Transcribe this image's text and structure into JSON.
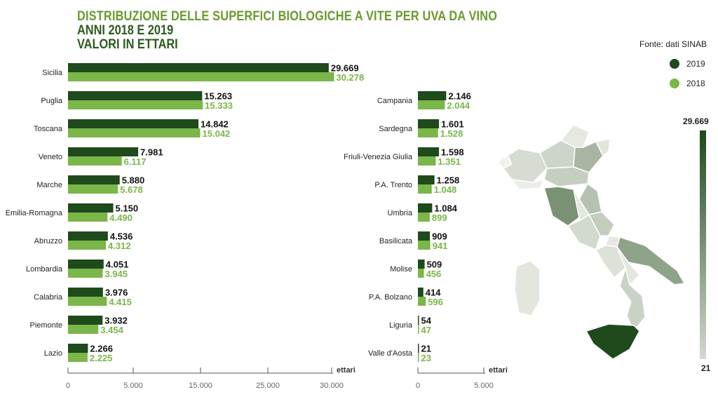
{
  "header": {
    "title": "DISTRIBUZIONE DELLE SUPERFICI BIOLOGICHE A VITE PER UVA DA VINO",
    "subtitle_1": "ANNI 2018 E 2019",
    "subtitle_2": "VALORI IN ETTARI"
  },
  "source": "Fonte: dati SINAB",
  "legend": [
    {
      "label": "2019",
      "color": "#1e4a1c"
    },
    {
      "label": "2018",
      "color": "#7ab648"
    }
  ],
  "colors": {
    "y2019": "#1e4a1c",
    "y2018": "#7ab648",
    "label2019": "#111111",
    "label2018": "#7ab648"
  },
  "map_scale": {
    "max_label": "29.669",
    "min_label": "21"
  },
  "chart_data": [
    {
      "type": "bar",
      "orientation": "horizontal",
      "categories": [
        "Sicilia",
        "Puglia",
        "Toscana",
        "Veneto",
        "Marche",
        "Emilia-Romagna",
        "Abruzzo",
        "Lombardia",
        "Calabria",
        "Piemonte",
        "Lazio"
      ],
      "series": [
        {
          "name": "2019",
          "values": [
            29669,
            15263,
            14842,
            7981,
            5880,
            5150,
            4536,
            4051,
            3976,
            3932,
            2266
          ],
          "labels": [
            "29.669",
            "15.263",
            "14.842",
            "7.981",
            "5.880",
            "5.150",
            "4.536",
            "4.051",
            "3.976",
            "3.932",
            "2.266"
          ]
        },
        {
          "name": "2018",
          "values": [
            30278,
            15333,
            15042,
            6117,
            5678,
            4490,
            4312,
            3945,
            4415,
            3454,
            2225
          ],
          "labels": [
            "30.278",
            "15.333",
            "15.042",
            "6.117",
            "5.678",
            "4.490",
            "4.312",
            "3.945",
            "4.415",
            "3.454",
            "2.225"
          ]
        }
      ],
      "xlabel": "ettari",
      "ticks": [
        0,
        5000,
        15000,
        25000,
        30000
      ],
      "tick_labels": [
        "0",
        "5.000",
        "15.000",
        "25.000",
        "30.000"
      ],
      "xlim": [
        0,
        30000
      ]
    },
    {
      "type": "bar",
      "orientation": "horizontal",
      "categories": [
        "Campania",
        "Sardegna",
        "Friuli-Venezia Giulia",
        "P.A. Trento",
        "Umbria",
        "Basilicata",
        "Molise",
        "P.A. Bolzano",
        "Liguria",
        "Valle d'Aosta"
      ],
      "series": [
        {
          "name": "2019",
          "values": [
            2146,
            1601,
            1598,
            1258,
            1084,
            909,
            509,
            414,
            54,
            21
          ],
          "labels": [
            "2.146",
            "1.601",
            "1.598",
            "1.258",
            "1.084",
            "909",
            "509",
            "414",
            "54",
            "21"
          ]
        },
        {
          "name": "2018",
          "values": [
            2044,
            1528,
            1351,
            1048,
            899,
            941,
            456,
            596,
            47,
            23
          ],
          "labels": [
            "2.044",
            "1.528",
            "1.351",
            "1.048",
            "899",
            "941",
            "456",
            "596",
            "47",
            "23"
          ]
        }
      ],
      "xlabel": "ettari",
      "ticks": [
        0,
        5000
      ],
      "tick_labels": [
        "0",
        "5.000"
      ],
      "xlim": [
        0,
        5000
      ]
    }
  ]
}
